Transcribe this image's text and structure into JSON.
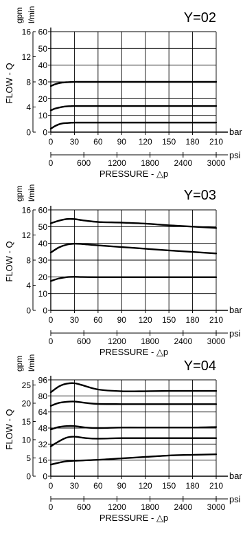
{
  "chart_data": [
    {
      "type": "line",
      "title": "Y=02",
      "ylabel": "FLOW - Q",
      "unit_gpm": "gpm",
      "unit_lmin": "l/min",
      "bar_unit": "bar",
      "psi_unit": "psi",
      "xlabel": "PRESSURE - △p",
      "bar_ticks": [
        "0",
        "30",
        "60",
        "90",
        "120",
        "150",
        "180",
        "210"
      ],
      "psi_ticks": [
        "0",
        "600",
        "1200",
        "1800",
        "2400",
        "3000"
      ],
      "gpm_ticks": [
        "0",
        "4",
        "8",
        "12",
        "16"
      ],
      "lmin_ticks": [
        "0",
        "10",
        "20",
        "30",
        "40",
        "50",
        "60"
      ],
      "xlim": [
        0,
        210
      ],
      "ylim": [
        0,
        60
      ],
      "series": [
        {
          "x": [
            0,
            5,
            10,
            15,
            20,
            25,
            30,
            40,
            60,
            90,
            120,
            150,
            180,
            210
          ],
          "values": [
            2,
            3.5,
            4.6,
            5.2,
            5.4,
            5.6,
            5.7,
            5.7,
            5.7,
            5.7,
            5.7,
            5.7,
            5.7,
            5.7
          ]
        },
        {
          "x": [
            0,
            5,
            10,
            15,
            20,
            25,
            30,
            40,
            60,
            90,
            120,
            150,
            180,
            210
          ],
          "values": [
            13,
            14,
            14.6,
            15.1,
            15.4,
            15.5,
            15.6,
            15.6,
            15.6,
            15.6,
            15.6,
            15.6,
            15.6,
            15.6
          ]
        },
        {
          "x": [
            0,
            5,
            10,
            15,
            20,
            25,
            30,
            40,
            60,
            90,
            120,
            150,
            180,
            210
          ],
          "values": [
            27.5,
            28.5,
            29.2,
            29.6,
            29.8,
            29.9,
            30,
            30,
            30,
            30,
            30,
            30,
            30,
            30
          ]
        }
      ]
    },
    {
      "type": "line",
      "title": "Y=03",
      "ylabel": "FLOW - Q",
      "unit_gpm": "gpm",
      "unit_lmin": "l/min",
      "bar_unit": "bar",
      "psi_unit": "psi",
      "xlabel": "PRESSURE - △p",
      "bar_ticks": [
        "0",
        "30",
        "60",
        "90",
        "120",
        "150",
        "180",
        "210"
      ],
      "psi_ticks": [
        "0",
        "600",
        "1200",
        "1800",
        "2400",
        "3000"
      ],
      "gpm_ticks": [
        "0",
        "4",
        "8",
        "12",
        "16"
      ],
      "lmin_ticks": [
        "0",
        "10",
        "20",
        "30",
        "40",
        "50",
        "60"
      ],
      "xlim": [
        0,
        210
      ],
      "ylim": [
        0,
        60
      ],
      "series": [
        {
          "x": [
            0,
            10,
            20,
            30,
            40,
            60,
            90,
            120,
            150,
            180,
            210
          ],
          "values": [
            17.5,
            19,
            19.8,
            20,
            19.9,
            19.8,
            19.8,
            19.8,
            19.8,
            19.8,
            19.8
          ]
        },
        {
          "x": [
            0,
            10,
            20,
            30,
            40,
            60,
            90,
            120,
            150,
            180,
            210
          ],
          "values": [
            34.5,
            37.5,
            39.2,
            39.8,
            39.6,
            38.8,
            37.8,
            36.8,
            35.8,
            34.9,
            34
          ]
        },
        {
          "x": [
            0,
            10,
            20,
            30,
            40,
            60,
            90,
            120,
            150,
            180,
            210
          ],
          "values": [
            52,
            53.5,
            54.5,
            54.5,
            53.8,
            52.8,
            52.4,
            51.8,
            50.8,
            50,
            49.2
          ]
        }
      ]
    },
    {
      "type": "line",
      "title": "Y=04",
      "ylabel": "FLOW - Q",
      "unit_gpm": "gpm",
      "unit_lmin": "l/min",
      "bar_unit": "bar",
      "psi_unit": "psi",
      "xlabel": "PRESSURE - △p",
      "bar_ticks": [
        "0",
        "30",
        "60",
        "90",
        "120",
        "150",
        "180",
        "210"
      ],
      "psi_ticks": [
        "0",
        "600",
        "1200",
        "1800",
        "2400",
        "3000"
      ],
      "gpm_ticks": [
        "0",
        "5",
        "10",
        "15",
        "20",
        "25"
      ],
      "lmin_ticks": [
        "0",
        "16",
        "32",
        "48",
        "64",
        "80",
        "96"
      ],
      "xlim": [
        0,
        210
      ],
      "ylim": [
        0,
        100
      ],
      "series": [
        {
          "x": [
            0,
            10,
            20,
            30,
            60,
            90,
            120,
            150,
            180,
            210
          ],
          "values": [
            12,
            14,
            15.5,
            16,
            17,
            18.5,
            20,
            21.5,
            22.2,
            22.7
          ]
        },
        {
          "x": [
            0,
            10,
            20,
            30,
            45,
            60,
            90,
            120,
            150,
            180,
            210
          ],
          "values": [
            31,
            36,
            40,
            41,
            39.5,
            39,
            39.5,
            39.5,
            39.5,
            39.5,
            39.5
          ]
        },
        {
          "x": [
            0,
            10,
            20,
            30,
            45,
            60,
            90,
            120,
            150,
            180,
            210
          ],
          "values": [
            48.5,
            51,
            52,
            52,
            50.5,
            50,
            50.5,
            50.5,
            50.5,
            50.5,
            51
          ]
        },
        {
          "x": [
            0,
            10,
            20,
            30,
            45,
            60,
            90,
            120,
            150,
            180,
            210
          ],
          "values": [
            73,
            76,
            77.2,
            77.5,
            76,
            75,
            74.8,
            74.8,
            74.8,
            74.8,
            74.8
          ]
        },
        {
          "x": [
            0,
            10,
            20,
            30,
            40,
            60,
            90,
            120,
            150,
            180,
            210
          ],
          "values": [
            87,
            93,
            96,
            96.5,
            94.5,
            90,
            88.2,
            88.2,
            88.5,
            88.5,
            88.5
          ]
        }
      ]
    }
  ]
}
